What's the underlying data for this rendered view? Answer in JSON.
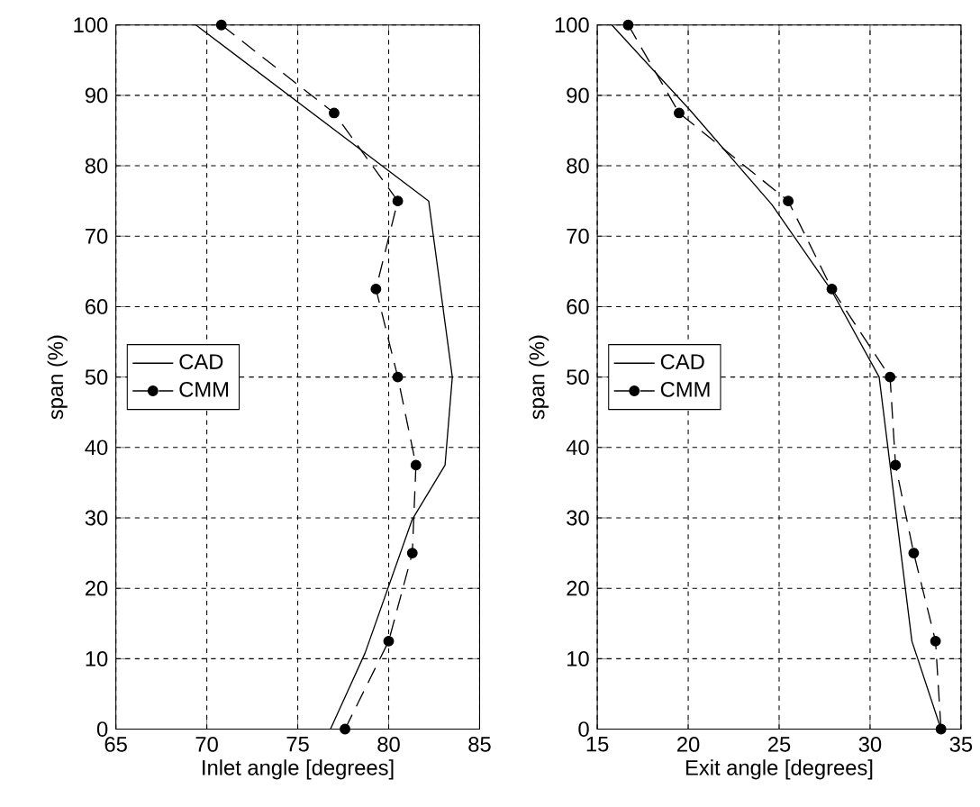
{
  "chart_data": [
    {
      "type": "line",
      "xlabel": "Inlet angle [degrees]",
      "ylabel": "span (%)",
      "xlim": [
        65,
        85
      ],
      "xticks": [
        65,
        70,
        75,
        80,
        85
      ],
      "ylim": [
        0,
        100
      ],
      "yticks": [
        0,
        10,
        20,
        30,
        40,
        50,
        60,
        70,
        80,
        90,
        100
      ],
      "grid": true,
      "legend": "left",
      "series": [
        {
          "name": "CAD",
          "color": "#000000",
          "marker": "none",
          "line_style": "solid",
          "x": [
            69.4,
            82.2,
            83.5,
            83.1,
            81.3,
            78.7,
            76.8
          ],
          "values": [
            100,
            75,
            50,
            37.5,
            29.8,
            10.8,
            0
          ]
        },
        {
          "name": "CMM",
          "color": "#000000",
          "marker": "circle",
          "line_style": "dashed",
          "x": [
            70.8,
            77.0,
            80.5,
            79.3,
            80.5,
            81.5,
            81.3,
            80.0,
            77.6
          ],
          "values": [
            100,
            87.5,
            75,
            62.5,
            50,
            37.5,
            25,
            12.5,
            0
          ]
        }
      ]
    },
    {
      "type": "line",
      "xlabel": "Exit angle [degrees]",
      "ylabel": "span (%)",
      "xlim": [
        15,
        35
      ],
      "xticks": [
        15,
        20,
        25,
        30,
        35
      ],
      "ylim": [
        0,
        100
      ],
      "yticks": [
        0,
        10,
        20,
        30,
        40,
        50,
        60,
        70,
        80,
        90,
        100
      ],
      "grid": true,
      "legend": "left",
      "series": [
        {
          "name": "CAD",
          "color": "#000000",
          "marker": "none",
          "line_style": "solid",
          "x": [
            15.8,
            20.1,
            24.6,
            27.9,
            30.5,
            32.3,
            33.9
          ],
          "values": [
            100,
            87.9,
            74.5,
            62.2,
            50,
            12.5,
            0
          ]
        },
        {
          "name": "CMM",
          "color": "#000000",
          "marker": "circle",
          "line_style": "dashed",
          "x": [
            16.7,
            19.5,
            25.5,
            27.9,
            31.1,
            31.4,
            32.4,
            33.6,
            33.9
          ],
          "values": [
            100,
            87.5,
            75,
            62.5,
            50,
            37.5,
            25,
            12.5,
            0
          ]
        }
      ]
    }
  ]
}
